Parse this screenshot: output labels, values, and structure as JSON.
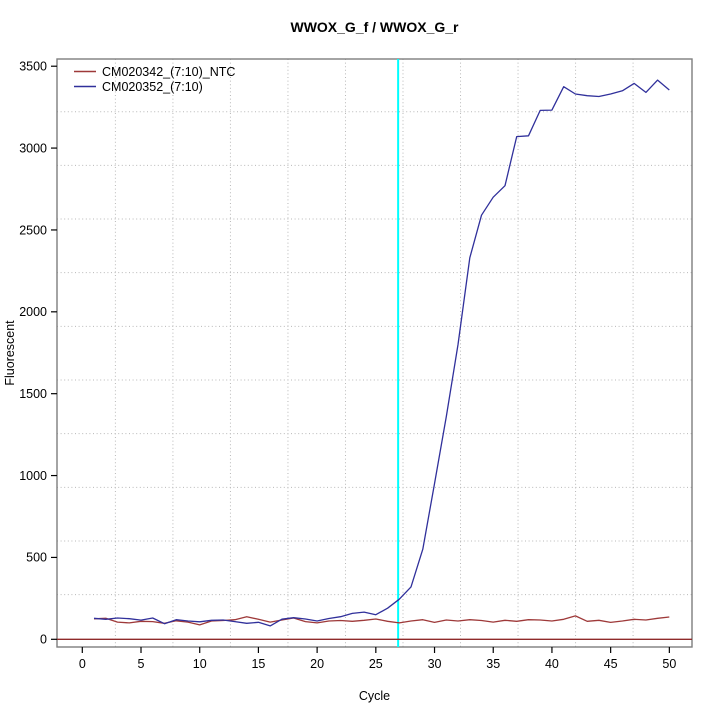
{
  "window": {
    "description": "R qPCR amplification plot"
  },
  "chart": {
    "title": "WWOX_G_f / WWOX_G_r",
    "xlabel": "Cycle",
    "ylabel": "Fluorescent"
  },
  "chart_data": {
    "type": "line",
    "title": "WWOX_G_f / WWOX_G_r",
    "xlabel": "Cycle",
    "ylabel": "Fluorescent",
    "xlim": [
      0,
      50
    ],
    "ylim": [
      0,
      3500
    ],
    "xticks": [
      0,
      5,
      10,
      15,
      20,
      25,
      30,
      35,
      40,
      45,
      50
    ],
    "yticks": [
      0,
      500,
      1000,
      1500,
      2000,
      2500,
      3000,
      3500
    ],
    "grid": {
      "style": "dotted",
      "color": "#b8b8b8",
      "cells": "11x11"
    },
    "legend_position": "top-left",
    "x": [
      1,
      2,
      3,
      4,
      5,
      6,
      7,
      8,
      9,
      10,
      11,
      12,
      13,
      14,
      15,
      16,
      17,
      18,
      19,
      20,
      21,
      22,
      23,
      24,
      25,
      26,
      27,
      28,
      29,
      30,
      31,
      32,
      33,
      34,
      35,
      36,
      37,
      38,
      39,
      40,
      41,
      42,
      43,
      44,
      45,
      46,
      47,
      48,
      49,
      50
    ],
    "series": [
      {
        "name": "CM020342_(7:10)_NTC",
        "color": "#9e3939",
        "values": [
          125,
          128,
          105,
          100,
          110,
          108,
          98,
          113,
          105,
          88,
          112,
          115,
          120,
          138,
          122,
          105,
          118,
          130,
          108,
          100,
          112,
          115,
          110,
          116,
          124,
          110,
          100,
          112,
          120,
          103,
          118,
          112,
          120,
          115,
          105,
          116,
          110,
          120,
          118,
          112,
          122,
          143,
          110,
          116,
          103,
          112,
          122,
          118,
          128,
          136
        ]
      },
      {
        "name": "CM020352_(7:10)",
        "color": "#30309b",
        "values": [
          128,
          122,
          130,
          126,
          117,
          130,
          95,
          120,
          112,
          107,
          116,
          118,
          108,
          98,
          104,
          82,
          123,
          132,
          124,
          112,
          127,
          138,
          158,
          166,
          150,
          190,
          245,
          320,
          550,
          950,
          1360,
          1800,
          2330,
          2590,
          2700,
          2770,
          3070,
          3075,
          3230,
          3232,
          3375,
          3330,
          3320,
          3315,
          3330,
          3350,
          3395,
          3340,
          3415,
          3355
        ]
      }
    ],
    "threshold_line": {
      "y": 0,
      "color": "#8f2a2a"
    },
    "vline": {
      "x": 26.9,
      "color": "#00ffff"
    }
  },
  "legend": {
    "entries": [
      {
        "label": "CM020342_(7:10)_NTC",
        "color": "#9e3939"
      },
      {
        "label": "CM020352_(7:10)",
        "color": "#30309b"
      }
    ]
  },
  "colors": {
    "plot_border": "#7e7e7e",
    "grid": "#b8b8b8",
    "tick": "#000000",
    "background": "#ffffff"
  }
}
